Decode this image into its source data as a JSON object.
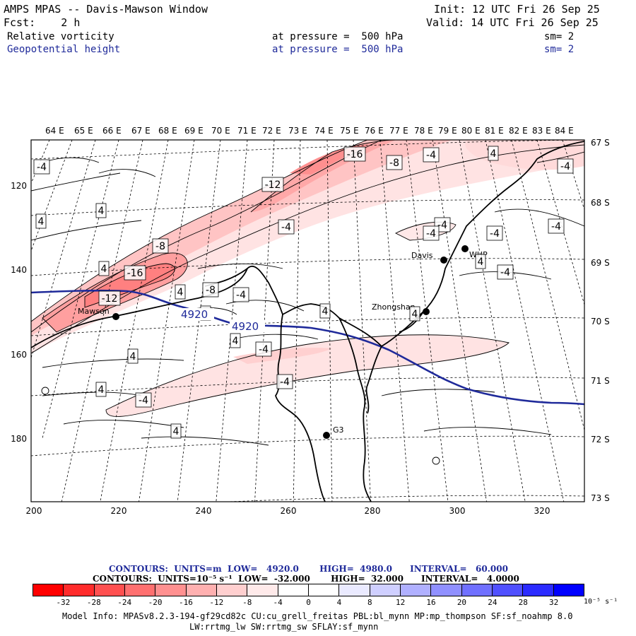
{
  "header": {
    "title": "AMPS MPAS -- Davis-Mawson Window",
    "init": "Init: 12 UTC Fri 26 Sep 25",
    "fcst": "Fcst:    2 h",
    "valid": "Valid: 14 UTC Fri 26 Sep 25",
    "field1": {
      "name": "Relative vorticity",
      "level": "at pressure =  500 hPa",
      "sm": "sm= 2"
    },
    "field2": {
      "name": "Geopotential height",
      "level": "at pressure =  500 hPa",
      "sm": "sm= 2"
    }
  },
  "axes": {
    "top_lon": [
      "64 E",
      "65 E",
      "66 E",
      "67 E",
      "68 E",
      "69 E",
      "70 E",
      "71 E",
      "72 E",
      "73 E",
      "74 E",
      "75 E",
      "76 E",
      "77 E",
      "78 E",
      "79 E",
      "80 E",
      "81 E",
      "82 E",
      "83 E",
      "84 E"
    ],
    "right_lat": [
      "67 S",
      "68 S",
      "69 S",
      "70 S",
      "71 S",
      "72 S",
      "73 S"
    ],
    "bottom_x": [
      "200",
      "220",
      "240",
      "260",
      "280",
      "300",
      "320"
    ],
    "left_y": [
      "120",
      "140",
      "160",
      "180"
    ]
  },
  "stations": [
    {
      "id": "mawson",
      "name": "Mawson"
    },
    {
      "id": "davis",
      "name": "Davis"
    },
    {
      "id": "whp",
      "name": "WHP"
    },
    {
      "id": "zhongshan",
      "name": "Zhongshan"
    },
    {
      "id": "g3",
      "name": "G3"
    }
  ],
  "contour_labels": {
    "vorticity": [
      "-4",
      "4",
      "4",
      "4",
      "-12",
      "-16",
      "-8",
      "-4",
      "4",
      "-8",
      "-16",
      "-12",
      "-4",
      "-8",
      "-4",
      "4",
      "-4",
      "-4",
      "-4",
      "-4",
      "-4",
      "-4",
      "4",
      "4",
      "4",
      "4",
      "4",
      "-4",
      "4",
      "-4",
      "-4",
      "4",
      "4"
    ],
    "height": [
      "4920",
      "4920"
    ]
  },
  "footer": {
    "line1": {
      "contours": "CONTOURS:",
      "units": "UNITS=m",
      "low": "LOW=   4920.0",
      "high": "HIGH=  4980.0",
      "interval": "INTERVAL=   60.000"
    },
    "line2": {
      "contours": "CONTOURS:",
      "units": "UNITS=10⁻⁵ s⁻¹",
      "low": "LOW=  -32.000",
      "high": "HIGH=  32.000",
      "interval": "INTERVAL=   4.0000"
    },
    "model_info": "Model Info: MPASv8.2.3-194-gf29cd82c CU:cu_grell_freitas PBL:bl_mynn MP:mp_thompson SF:sf_noahmp 8.0",
    "model_info2": "LW:rrtmg_lw SW:rrtmg_sw SFLAY:sf_mynn"
  },
  "colorbar": {
    "labels": [
      "-32",
      "-28",
      "-24",
      "-20",
      "-16",
      "-12",
      "-8",
      "-4",
      "0",
      "4",
      "8",
      "12",
      "16",
      "20",
      "24",
      "28",
      "32"
    ],
    "units": "10⁻⁵ s⁻¹",
    "colors": [
      "#ff0000",
      "#ff2b2b",
      "#ff5050",
      "#ff7070",
      "#ff9090",
      "#ffb0b0",
      "#ffcfcf",
      "#ffeaea",
      "#ffffff",
      "#ffffff",
      "#eaeaff",
      "#cfcfff",
      "#b0b0ff",
      "#9090ff",
      "#7070ff",
      "#5050ff",
      "#2b2bff",
      "#0000ff"
    ]
  },
  "colors": {
    "height_contour": "#1f2a9a",
    "coast": "#000000"
  }
}
